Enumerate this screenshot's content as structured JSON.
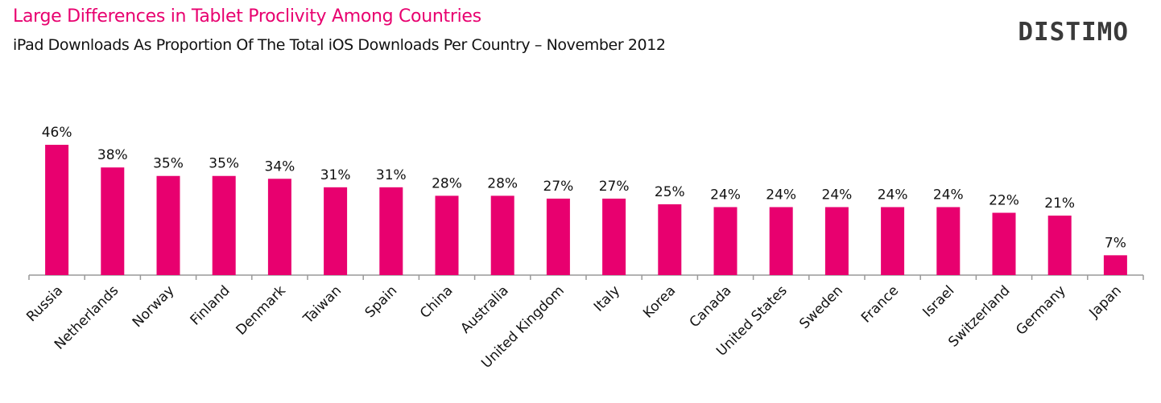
{
  "header": {
    "title": "Large Differences in Tablet Proclivity Among Countries",
    "subtitle": "iPad Downloads As Proportion Of The Total iOS Downloads Per Country – November 2012",
    "logo_text": "DISTIMO"
  },
  "colors": {
    "bar": "#e8006f",
    "title": "#e8006f",
    "axis": "#999999"
  },
  "chart_data": {
    "type": "bar",
    "categories": [
      "Russia",
      "Netherlands",
      "Norway",
      "Finland",
      "Denmark",
      "Taiwan",
      "Spain",
      "China",
      "Australia",
      "United Kingdom",
      "Italy",
      "Korea",
      "Canada",
      "United States",
      "Sweden",
      "France",
      "Israel",
      "Switzerland",
      "Germany",
      "Japan"
    ],
    "values": [
      46,
      38,
      35,
      35,
      34,
      31,
      31,
      28,
      28,
      27,
      27,
      25,
      24,
      24,
      24,
      24,
      24,
      22,
      21,
      7
    ],
    "value_labels": [
      "46%",
      "38%",
      "35%",
      "35%",
      "34%",
      "31%",
      "31%",
      "28%",
      "28%",
      "27%",
      "27%",
      "25%",
      "24%",
      "24%",
      "24%",
      "24%",
      "24%",
      "22%",
      "21%",
      "7%"
    ],
    "title": "Large Differences in Tablet Proclivity Among Countries",
    "subtitle": "iPad Downloads As Proportion Of The Total iOS Downloads Per Country – November 2012",
    "xlabel": "",
    "ylabel": "",
    "ylim": [
      0,
      46
    ],
    "grid": false,
    "legend": "none"
  }
}
